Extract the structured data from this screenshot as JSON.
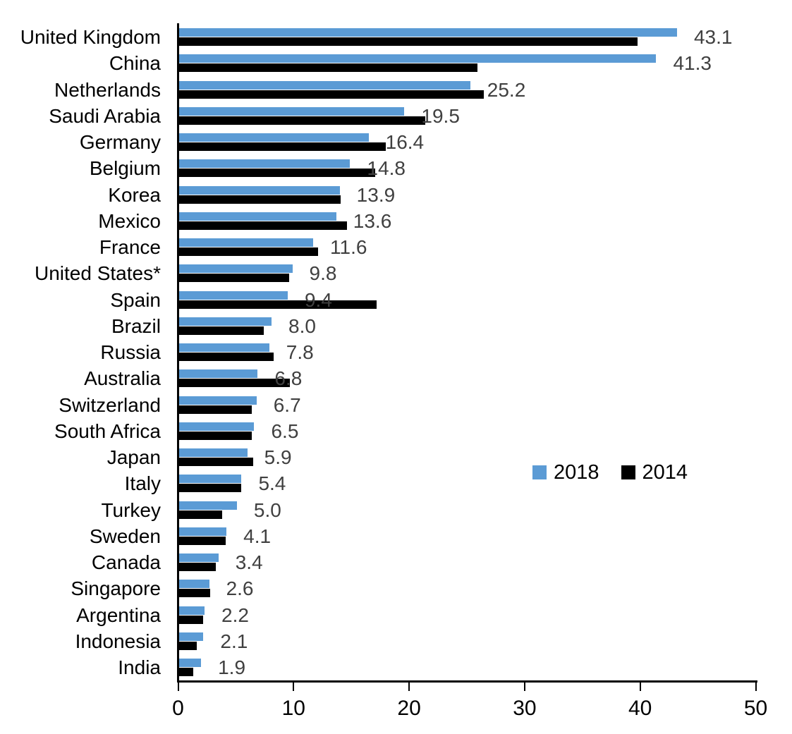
{
  "chart_data": {
    "type": "bar",
    "orientation": "horizontal",
    "title": "",
    "xlabel": "",
    "ylabel": "",
    "xlim": [
      0,
      50
    ],
    "x_ticks": [
      "0",
      "10",
      "20",
      "30",
      "40",
      "50"
    ],
    "grid": false,
    "legend_position": "middle-right",
    "categories": [
      "United Kingdom",
      "China",
      "Netherlands",
      "Saudi Arabia",
      "Germany",
      "Belgium",
      "Korea",
      "Mexico",
      "France",
      "United States*",
      "Spain",
      "Brazil",
      "Russia",
      "Australia",
      "Switzerland",
      "South Africa",
      "Japan",
      "Italy",
      "Turkey",
      "Sweden",
      "Canada",
      "Singapore",
      "Argentina",
      "Indonesia",
      "India"
    ],
    "series": [
      {
        "name": "2018",
        "color": "#5B9BD5",
        "values": [
          43.1,
          41.3,
          25.2,
          19.5,
          16.4,
          14.8,
          13.9,
          13.6,
          11.6,
          9.8,
          9.4,
          8.0,
          7.8,
          6.8,
          6.7,
          6.5,
          5.9,
          5.4,
          5.0,
          4.1,
          3.4,
          2.6,
          2.2,
          2.1,
          1.9
        ]
      },
      {
        "name": "2014",
        "color": "#000000",
        "values": [
          39.7,
          25.8,
          26.4,
          21.3,
          17.9,
          17.0,
          14.0,
          14.5,
          12.0,
          9.5,
          17.1,
          7.3,
          8.2,
          9.6,
          6.3,
          6.3,
          6.4,
          5.4,
          3.7,
          4.0,
          3.2,
          2.7,
          2.1,
          1.5,
          1.2
        ]
      }
    ],
    "data_labels": {
      "series": "2018",
      "values": [
        "43.1",
        "41.3",
        "25.2",
        "19.5",
        "16.4",
        "14.8",
        "13.9",
        "13.6",
        "11.6",
        "9.8",
        "9.4",
        "8.0",
        "7.8",
        "6.8",
        "6.7",
        "6.5",
        "5.9",
        "5.4",
        "5.0",
        "4.1",
        "3.4",
        "2.6",
        "2.2",
        "2.1",
        "1.9"
      ]
    }
  },
  "colors": {
    "background": "#FFFFFF",
    "axis": "#000000",
    "value_label": "#404040",
    "category_label": "#000000",
    "bar_2018": "#5B9BD5",
    "bar_2014": "#000000"
  }
}
